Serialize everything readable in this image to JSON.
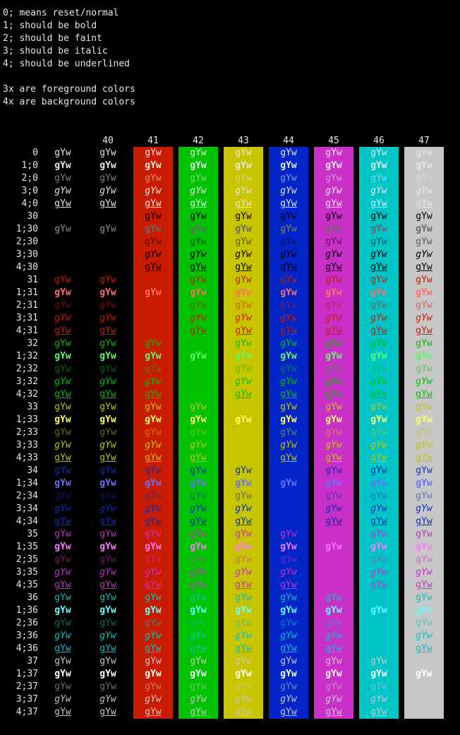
{
  "intro_lines": [
    "0; means reset/normal",
    "1; should be bold",
    "2; should be faint",
    "3; should be italic",
    "4; should be underlined",
    "",
    "3x are foreground colors",
    "4x are background colors"
  ],
  "sample_text": "gYw",
  "column_headers": [
    "",
    "40",
    "41",
    "42",
    "43",
    "44",
    "45",
    "46",
    "47"
  ],
  "row_labels": [
    "0",
    "1;0",
    "2;0",
    "3;0",
    "4;0",
    "30",
    "1;30",
    "2;30",
    "3;30",
    "4;30",
    "31",
    "1;31",
    "2;31",
    "3;31",
    "4;31",
    "32",
    "1;32",
    "2;32",
    "3;32",
    "4;32",
    "33",
    "1;33",
    "2;33",
    "3;33",
    "4;33",
    "34",
    "1;34",
    "2;34",
    "3;34",
    "4;34",
    "35",
    "1;35",
    "2;35",
    "3;35",
    "4;35",
    "36",
    "1;36",
    "2;36",
    "3;36",
    "4;36",
    "37",
    "1;37",
    "2;37",
    "3;37",
    "4;37"
  ],
  "colors": {
    "background": "#000000",
    "default_fg": "#e6e6e6",
    "bg": [
      "#000000",
      "#c91b00",
      "#00c200",
      "#c7c400",
      "#0225c7",
      "#c930c7",
      "#00c5c7",
      "#c7c7c7"
    ],
    "fg": [
      "#000000",
      "#c91b00",
      "#00c200",
      "#c7c400",
      "#0a2fbd",
      "#c930c7",
      "#00c5c7",
      "#c7c7c7"
    ],
    "fg_bright": [
      "#686868",
      "#ff6e67",
      "#5ffa68",
      "#fffc67",
      "#6871ff",
      "#ff77ff",
      "#60fdff",
      "#ffffff"
    ]
  }
}
